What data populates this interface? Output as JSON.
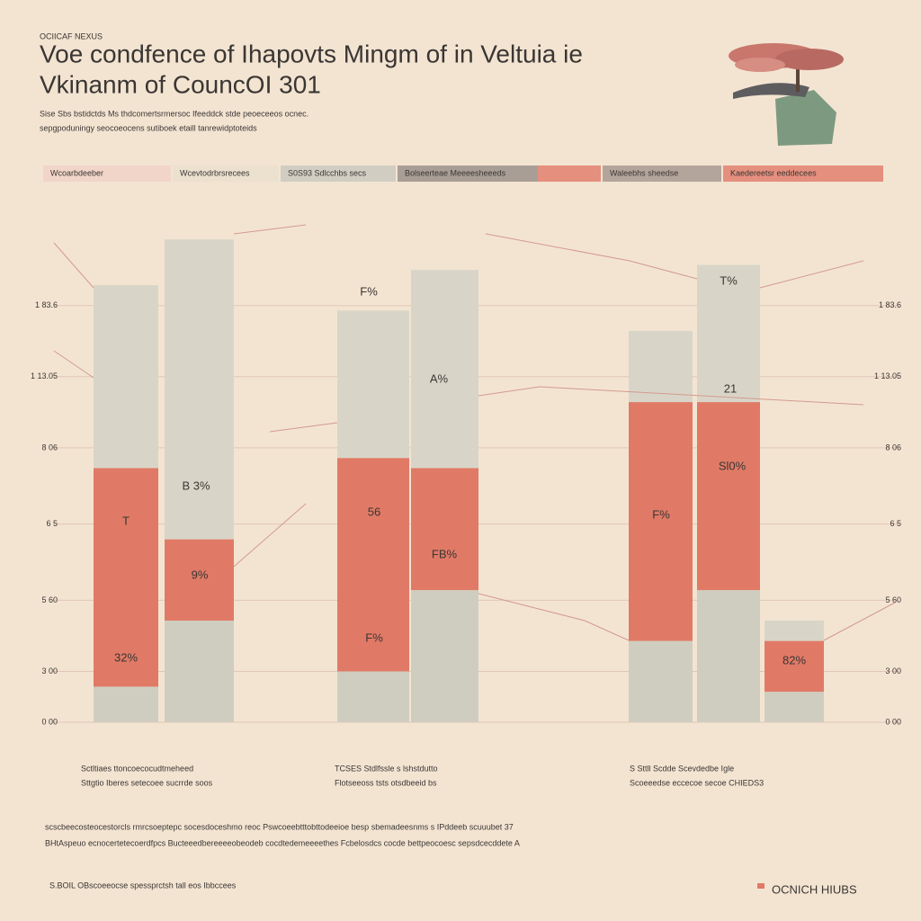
{
  "chart_data": {
    "type": "stacked-bar",
    "kicker": "OCIICAF NEXUS",
    "title": "Voe condfence of Ihapovts Mingm of in Veltuia ie",
    "subtitle": "Vkinanm of CouncOI 301",
    "description": [
      "Sise Sbs bstidctds Ms thdcomertsrmersoc Ifeeddck stde peoeceeos ocnec.",
      "sepgpoduningy seocoeocens sutiboek etaill tanrewidptoteids"
    ],
    "legend_strip": [
      {
        "label": "Wcoarbdeeber",
        "color": "#f1d5c8"
      },
      {
        "label": "Wcevtodrbrsrecees",
        "color": "#ece0cf"
      },
      {
        "label": "S0S93 Sdlcchbs secs",
        "color": "#d2cdc2"
      },
      {
        "label": "Bolseerteae Meeeesheeeds",
        "color": "#a89e95"
      },
      {
        "label": "Waleebhs sheedse",
        "color": "#b4a59c"
      },
      {
        "label": "Kaedereetsr eeddecees",
        "color": "#e58f7e"
      }
    ],
    "categories": [
      null,
      null,
      null,
      null,
      null,
      null,
      null
    ],
    "series": [
      {
        "color": "#cfcdc0",
        "values": [
          7,
          20,
          10,
          26,
          16,
          26,
          6
        ]
      },
      {
        "color": "#e07a66",
        "values": [
          43,
          16,
          42,
          24,
          47,
          37,
          10
        ]
      },
      {
        "color": "#d8d5c8",
        "values": [
          36,
          59,
          29,
          39,
          14,
          27,
          4
        ]
      }
    ],
    "ylim": [
      0,
      100
    ],
    "yticks": [
      {
        "value": 0,
        "label": "0 00"
      },
      {
        "value": 10,
        "label": "3 00"
      },
      {
        "value": 24,
        "label": "5 60"
      },
      {
        "value": 39,
        "label": "6 5"
      },
      {
        "value": 54,
        "label": "8 06"
      },
      {
        "value": 68,
        "label": "1 13.05"
      },
      {
        "value": 82,
        "label": "1 83.6"
      }
    ],
    "grid": true,
    "annotations": [
      "T",
      "32%",
      "B 3%",
      "9%",
      "56",
      "F%",
      "FB%",
      "F%",
      "A%",
      "F%",
      "21",
      "T%",
      "82%",
      "Sl0%"
    ],
    "captions": [
      [
        "Sctltiaes ttoncoecocudtmeheed",
        "Sttgtio Iberes setecoee sucrrde soos"
      ],
      [
        "TCSES Stdlfssle s lshstdutto",
        "Flotseeoss tsts otsdbeeid bs"
      ],
      [
        "S Sttll Scdde Scevdedbe Igle",
        "Scoeeedse eccecoe secoe CHIEDS3"
      ]
    ],
    "footnote": [
      "scscbeecosteocestorcls  rmrcsoeptepc socesdoceshmo  reoc Pswcoeebtttobttodeeioe besp sbemadeesnms s IPddeeb scuuubet 37",
      "BHtAspeuo ecnocertetecoerdfpcs  Bucteeedbereeeeobeodeb cocdtedemeeeethes  Fcbelosdcs  cocde  bettpeocoesc sepsdcecddete A"
    ],
    "source": "S.BOIL OBscoeeocse spessprctsh  tall eos Ibbccees",
    "brand": "OCNICH HIUBS"
  }
}
